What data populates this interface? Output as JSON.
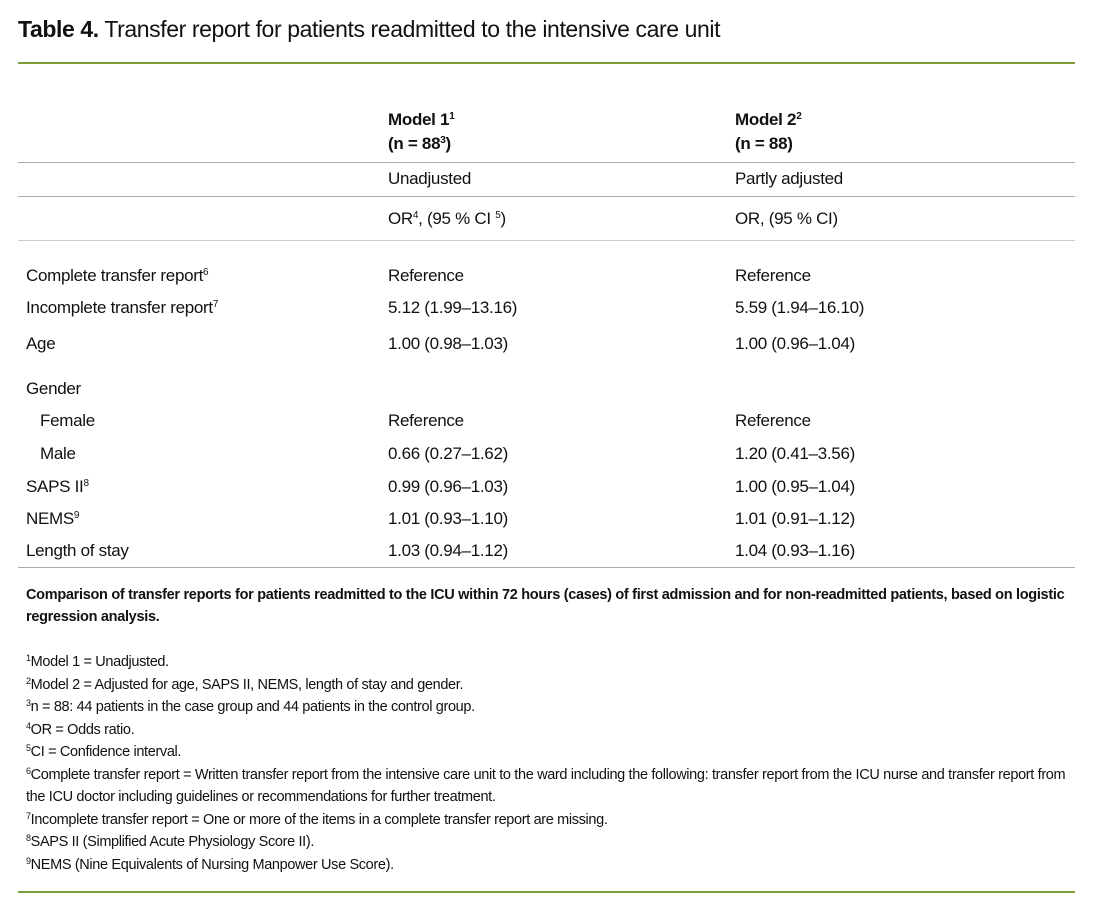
{
  "title": {
    "label": "Table 4.",
    "text": "Transfer report for patients readmitted to the intensive care unit"
  },
  "columns": [
    {
      "name": "Model 1",
      "name_sup": "1",
      "n": "(n = 88",
      "n_sup": "3",
      "n_close": ")",
      "adjustment": "Unadjusted",
      "measure": "OR",
      "measure_sup": "4",
      "measure_rest": ", (95 % CI ",
      "measure_sup2": "5",
      "measure_close": ")"
    },
    {
      "name": "Model 2",
      "name_sup": "2",
      "n": "(n = 88)",
      "adjustment": "Partly adjusted",
      "measure": "OR, (95 % CI)"
    }
  ],
  "rows": [
    {
      "label": "Complete transfer report",
      "sup": "6",
      "m1": "Reference",
      "m2": "Reference"
    },
    {
      "label": "Incomplete transfer report",
      "sup": "7",
      "m1": "5.12 (1.99–13.16)",
      "m2": "5.59 (1.94–16.10)"
    },
    {
      "label": "Age",
      "m1": "1.00 (0.98–1.03)",
      "m2": "1.00 (0.96–1.04)"
    },
    {
      "label": "Gender"
    },
    {
      "label": "Female",
      "m1": "Reference",
      "m2": "Reference"
    },
    {
      "label": "Male",
      "m1": "0.66 (0.27–1.62)",
      "m2": "1.20 (0.41–3.56)"
    },
    {
      "label": "SAPS II",
      "sup": "8",
      "m1": "0.99 (0.96–1.03)",
      "m2": "1.00 (0.95–1.04)"
    },
    {
      "label": "NEMS",
      "sup": "9",
      "m1": "1.01 (0.93–1.10)",
      "m2": "1.01 (0.91–1.12)"
    },
    {
      "label": "Length of stay",
      "m1": "1.03 (0.94–1.12)",
      "m2": "1.04 (0.93–1.16)"
    }
  ],
  "caption": "Comparison of transfer reports for patients readmitted to the ICU within 72 hours (cases) of first admission and for non-readmitted patients, based on logistic regression analysis.",
  "footnotes": [
    {
      "sup": "1",
      "text": "Model 1 = Unadjusted."
    },
    {
      "sup": "2",
      "text": "Model 2 = Adjusted for age, SAPS II, NEMS, length of stay and gender."
    },
    {
      "sup": "3",
      "text": "n = 88: 44 patients in the case group and 44 patients in the control group."
    },
    {
      "sup": "4",
      "text": "OR = Odds ratio."
    },
    {
      "sup": "5",
      "text": "CI = Confidence interval."
    },
    {
      "sup": "6",
      "text": "Complete transfer report = Written transfer report from the intensive care unit to the ward including the following: transfer report from the ICU nurse and transfer report from the ICU doctor including guidelines or recommendations for further treatment."
    },
    {
      "sup": "7",
      "text": "Incomplete transfer report = One or more of the items in a complete transfer report are missing."
    },
    {
      "sup": "8",
      "text": "SAPS II (Simplified Acute Physiology Score II)."
    },
    {
      "sup": "9",
      "text": "NEMS (Nine Equivalents of Nursing Manpower Use Score)."
    }
  ],
  "colors": {
    "rule": "#7f9c3d",
    "divider": "#aaaaaa"
  }
}
